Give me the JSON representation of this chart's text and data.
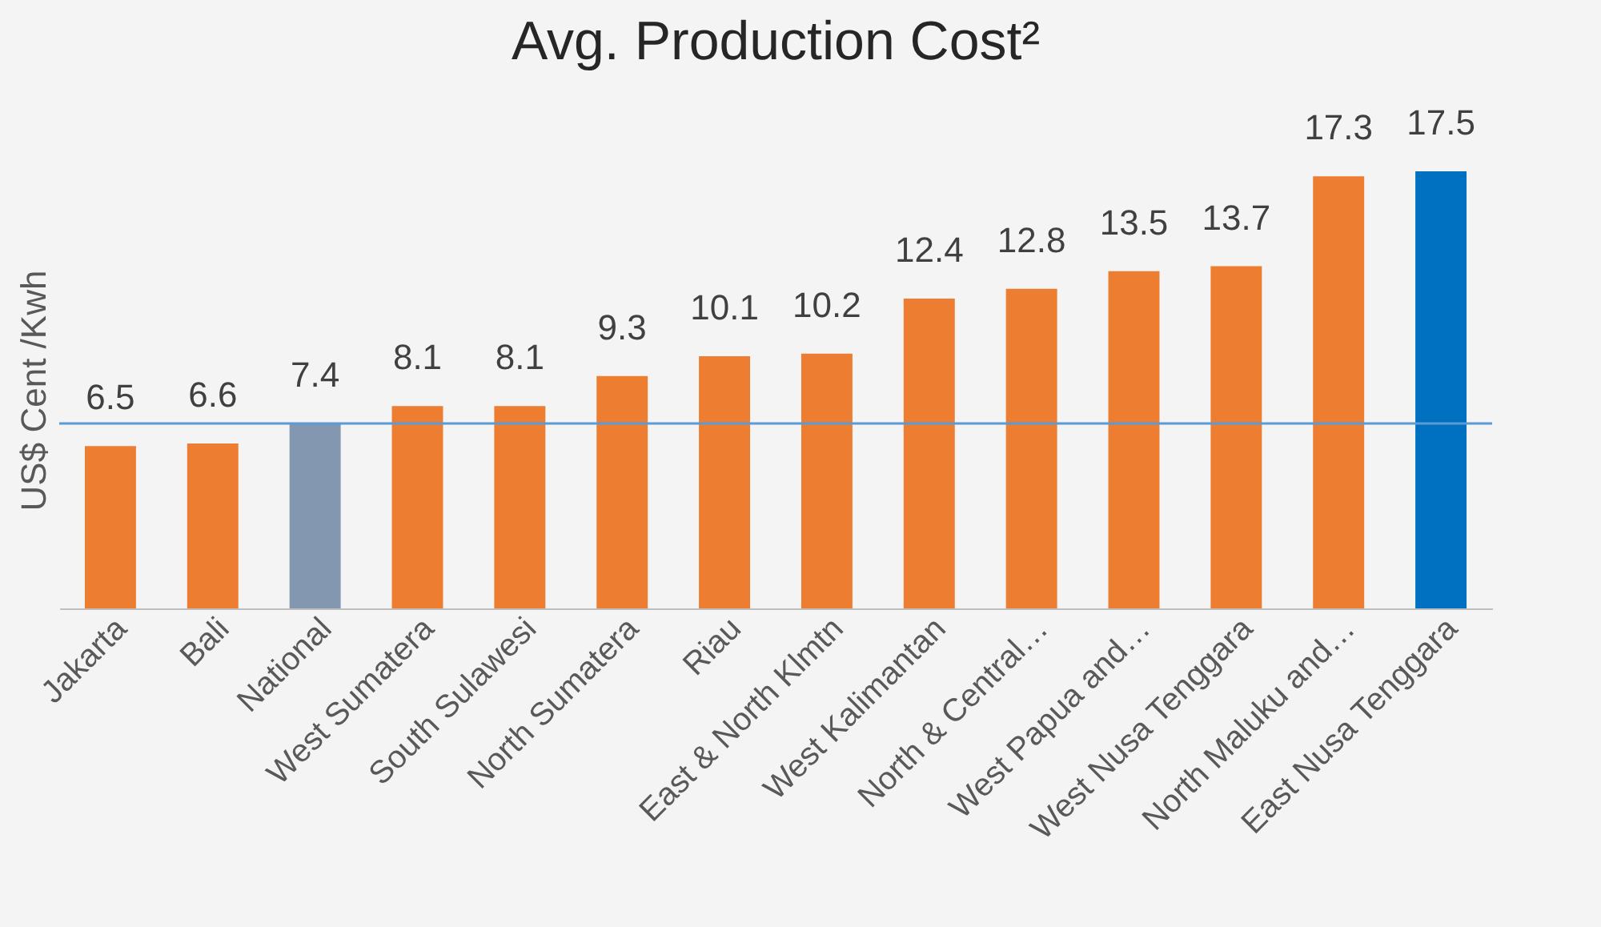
{
  "chart_data": {
    "type": "bar",
    "title": "Avg. Production Cost²",
    "ylabel": "US$ Cent /Kwh",
    "categories": [
      "Jakarta",
      "Bali",
      "National",
      "West Sumatera",
      "South Sulawesi",
      "North Sumatera",
      "Riau",
      "East & North Klmtn",
      "West Kalimantan",
      "North & Central…",
      "West Papua and…",
      "West Nusa Tenggara",
      "North Maluku and…",
      "East Nusa Tenggara"
    ],
    "values": [
      6.5,
      6.6,
      7.4,
      8.1,
      8.1,
      9.3,
      10.1,
      10.2,
      12.4,
      12.8,
      13.5,
      13.7,
      17.3,
      17.5
    ],
    "colors": [
      "#ed7d31",
      "#ed7d31",
      "#8497b0",
      "#ed7d31",
      "#ed7d31",
      "#ed7d31",
      "#ed7d31",
      "#ed7d31",
      "#ed7d31",
      "#ed7d31",
      "#ed7d31",
      "#ed7d31",
      "#ed7d31",
      "#0070c0"
    ],
    "ylim": [
      0,
      17.5
    ],
    "data_labels": true,
    "tick_labels": "x",
    "grid": false,
    "ref_lines": [
      {
        "axis": "y",
        "value": 7.4,
        "color": "#5b9bd5"
      }
    ]
  }
}
